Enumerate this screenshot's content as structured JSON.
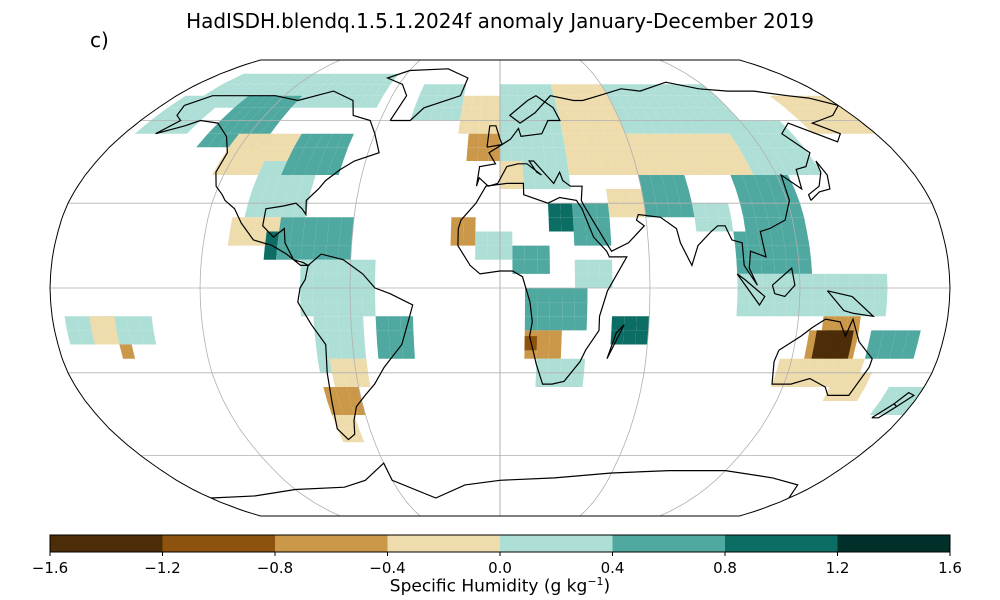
{
  "title": "HadISDH.blendq.1.5.1.2024f anomaly January-December 2019",
  "panel_label": "c)",
  "colorbar": {
    "label_prefix": "Specific Humidity (g kg",
    "label_exponent": "−1",
    "label_suffix": ")",
    "ticks": [
      "−1.6",
      "−1.2",
      "−0.8",
      "−0.4",
      "0.0",
      "0.4",
      "0.8",
      "1.2",
      "1.6"
    ],
    "tick_values": [
      -1.6,
      -1.2,
      -0.8,
      -0.4,
      0.0,
      0.4,
      0.8,
      1.2,
      1.6
    ],
    "colors": [
      "#4d2d08",
      "#8d520d",
      "#cb9849",
      "#eedcac",
      "#aedfd7",
      "#4fa9a0",
      "#0b6d64",
      "#01302b"
    ]
  },
  "chart_data": {
    "type": "heatmap",
    "projection": "Robinson (global)",
    "grid": true,
    "graticule_lon_step_deg": 60,
    "graticule_lat_step_deg": 30,
    "cell_size_deg": 5,
    "variable": "Specific Humidity anomaly",
    "units": "g kg-1",
    "range": [
      -1.6,
      1.6
    ],
    "regions": [
      {
        "lat": [
          65,
          80
        ],
        "lon": [
          -165,
          -65
        ],
        "value": 0.3
      },
      {
        "lat": [
          50,
          70
        ],
        "lon": [
          -140,
          -110
        ],
        "value": 0.6
      },
      {
        "lat": [
          55,
          70
        ],
        "lon": [
          -175,
          -150
        ],
        "value": 0.3
      },
      {
        "lat": [
          40,
          55
        ],
        "lon": [
          -125,
          -95
        ],
        "value": -0.2
      },
      {
        "lat": [
          25,
          45
        ],
        "lon": [
          -105,
          -80
        ],
        "value": 0.3
      },
      {
        "lat": [
          40,
          55
        ],
        "lon": [
          -95,
          -70
        ],
        "value": 0.5
      },
      {
        "lat": [
          15,
          25
        ],
        "lon": [
          -110,
          -85
        ],
        "value": -0.2
      },
      {
        "lat": [
          10,
          25
        ],
        "lon": [
          -90,
          -60
        ],
        "value": 0.4
      },
      {
        "lat": [
          10,
          20
        ],
        "lon": [
          -95,
          -90
        ],
        "value": 0.9
      },
      {
        "lat": [
          -10,
          10
        ],
        "lon": [
          -80,
          -50
        ],
        "value": 0.3
      },
      {
        "lat": [
          -30,
          -10
        ],
        "lon": [
          -75,
          -55
        ],
        "value": 0.2
      },
      {
        "lat": [
          -25,
          -10
        ],
        "lon": [
          -50,
          -38
        ],
        "value": 0.6
      },
      {
        "lat": [
          -35,
          -25
        ],
        "lon": [
          -70,
          -55
        ],
        "value": -0.2
      },
      {
        "lat": [
          -45,
          -35
        ],
        "lon": [
          -75,
          -60
        ],
        "value": -0.5
      },
      {
        "lat": [
          -55,
          -45
        ],
        "lon": [
          -75,
          -65
        ],
        "value": -0.2
      },
      {
        "lat": [
          -20,
          -10
        ],
        "lon": [
          -175,
          -140
        ],
        "value": 0.2
      },
      {
        "lat": [
          -20,
          -10
        ],
        "lon": [
          -165,
          -155
        ],
        "value": -0.3
      },
      {
        "lat": [
          -25,
          -20
        ],
        "lon": [
          -155,
          -150
        ],
        "value": -0.6
      },
      {
        "lat": [
          60,
          75
        ],
        "lon": [
          -45,
          -20
        ],
        "value": 0.3
      },
      {
        "lat": [
          55,
          70
        ],
        "lon": [
          -20,
          5
        ],
        "value": -0.2
      },
      {
        "lat": [
          45,
          55
        ],
        "lon": [
          -15,
          0
        ],
        "value": -0.5
      },
      {
        "lat": [
          35,
          60
        ],
        "lon": [
          0,
          30
        ],
        "value": 0.3
      },
      {
        "lat": [
          60,
          75
        ],
        "lon": [
          0,
          30
        ],
        "value": 0.2
      },
      {
        "lat": [
          35,
          45
        ],
        "lon": [
          0,
          10
        ],
        "value": -0.3
      },
      {
        "lat": [
          15,
          25
        ],
        "lon": [
          -20,
          -10
        ],
        "value": -0.5
      },
      {
        "lat": [
          10,
          20
        ],
        "lon": [
          -10,
          5
        ],
        "value": 0.3
      },
      {
        "lat": [
          5,
          15
        ],
        "lon": [
          5,
          20
        ],
        "value": 0.6
      },
      {
        "lat": [
          15,
          30
        ],
        "lon": [
          30,
          45
        ],
        "value": 0.7
      },
      {
        "lat": [
          20,
          30
        ],
        "lon": [
          20,
          30
        ],
        "value": 1.0
      },
      {
        "lat": [
          0,
          10
        ],
        "lon": [
          30,
          45
        ],
        "value": 0.3
      },
      {
        "lat": [
          -15,
          0
        ],
        "lon": [
          10,
          35
        ],
        "value": 0.4
      },
      {
        "lat": [
          -25,
          -15
        ],
        "lon": [
          10,
          25
        ],
        "value": -0.6
      },
      {
        "lat": [
          -22,
          -18
        ],
        "lon": [
          10,
          15
        ],
        "value": -1.0
      },
      {
        "lat": [
          -35,
          -25
        ],
        "lon": [
          15,
          35
        ],
        "value": 0.3
      },
      {
        "lat": [
          -20,
          -10
        ],
        "lon": [
          45,
          60
        ],
        "value": 0.8
      },
      {
        "lat": [
          40,
          75
        ],
        "lon": [
          30,
          60
        ],
        "value": -0.2
      },
      {
        "lat": [
          55,
          75
        ],
        "lon": [
          60,
          120
        ],
        "value": 0.2
      },
      {
        "lat": [
          40,
          55
        ],
        "lon": [
          60,
          110
        ],
        "value": -0.2
      },
      {
        "lat": [
          40,
          60
        ],
        "lon": [
          110,
          140
        ],
        "value": 0.3
      },
      {
        "lat": [
          25,
          40
        ],
        "lon": [
          60,
          80
        ],
        "value": 0.5
      },
      {
        "lat": [
          25,
          35
        ],
        "lon": [
          45,
          60
        ],
        "value": -0.4
      },
      {
        "lat": [
          20,
          30
        ],
        "lon": [
          80,
          95
        ],
        "value": 0.3
      },
      {
        "lat": [
          20,
          40
        ],
        "lon": [
          100,
          125
        ],
        "value": 0.6
      },
      {
        "lat": [
          5,
          20
        ],
        "lon": [
          95,
          125
        ],
        "value": 0.5
      },
      {
        "lat": [
          -10,
          5
        ],
        "lon": [
          95,
          155
        ],
        "value": 0.3
      },
      {
        "lat": [
          55,
          70
        ],
        "lon": [
          150,
          180
        ],
        "value": -0.2
      },
      {
        "lat": [
          -20,
          -10
        ],
        "lon": [
          130,
          145
        ],
        "value": -0.5
      },
      {
        "lat": [
          -30,
          -15
        ],
        "lon": [
          125,
          145
        ],
        "value": -0.8
      },
      {
        "lat": [
          -25,
          -15
        ],
        "lon": [
          128,
          140
        ],
        "value": -1.3
      },
      {
        "lat": [
          -25,
          -18
        ],
        "lon": [
          132,
          138
        ],
        "value": -1.7
      },
      {
        "lat": [
          -35,
          -25
        ],
        "lon": [
          115,
          150
        ],
        "value": -0.4
      },
      {
        "lat": [
          -40,
          -30
        ],
        "lon": [
          140,
          155
        ],
        "value": -0.2
      },
      {
        "lat": [
          -25,
          -15
        ],
        "lon": [
          150,
          170
        ],
        "value": 0.4
      },
      {
        "lat": [
          -45,
          -35
        ],
        "lon": [
          165,
          180
        ],
        "value": 0.3
      }
    ]
  }
}
